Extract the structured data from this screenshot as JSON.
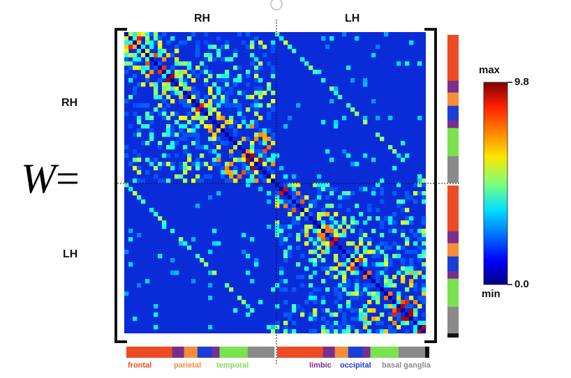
{
  "equation": {
    "symbol": "W",
    "equals": "="
  },
  "hemispheres": {
    "top_left": "RH",
    "top_right": "LH",
    "side_top": "RH",
    "side_bottom": "LH"
  },
  "colorbar": {
    "max_label": "max",
    "min_label": "min",
    "max_value": "9.8",
    "min_value": "0.0",
    "colormap": "jet"
  },
  "regions": [
    {
      "name": "frontal",
      "color": "#ec4b23"
    },
    {
      "name": "parietal",
      "color": "#f68d3a"
    },
    {
      "name": "temporal",
      "color": "#7be24f"
    },
    {
      "name": "limbic",
      "color": "#7a2e8e"
    },
    {
      "name": "occipital",
      "color": "#1a3fd6"
    },
    {
      "name": "basal ganglia",
      "color": "#8a8a8a"
    }
  ],
  "region_bar_order": [
    "frontal",
    "limbic",
    "parietal",
    "occipital",
    "limbic",
    "temporal",
    "basal ganglia"
  ],
  "chart_data": {
    "type": "heatmap",
    "description_matrix": "symmetric connectivity matrix, two hemispheres (RH, LH) as diagonal blocks",
    "value_range": [
      0.0,
      9.8
    ]
  }
}
